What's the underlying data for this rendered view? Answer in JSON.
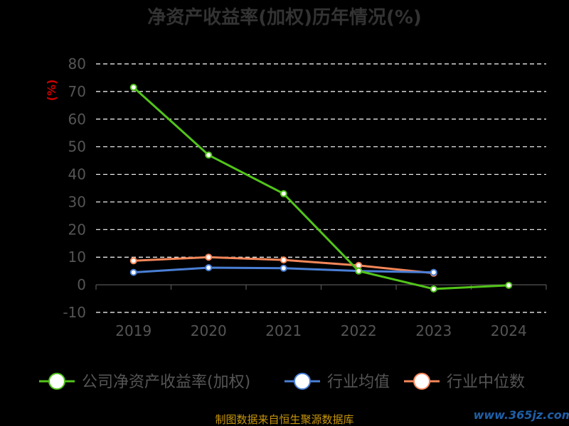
{
  "chart_data": {
    "type": "line",
    "title": "净资产收益率(加权)历年情况(%)",
    "ylabel": "(%)",
    "xlabel": "",
    "categories": [
      "2019",
      "2020",
      "2021",
      "2022",
      "2023",
      "2024"
    ],
    "ylim": [
      -10,
      80
    ],
    "yticks": [
      80,
      70,
      60,
      50,
      40,
      30,
      20,
      10,
      0,
      -10
    ],
    "grid": true,
    "legend_placement": "bottom",
    "series": [
      {
        "name": "公司净资产收益率(加权)",
        "color": "#52c41a",
        "values": [
          71.5,
          47,
          33,
          5,
          -1.5,
          -0.2
        ]
      },
      {
        "name": "行业均值",
        "color": "#4a7fd6",
        "values": [
          4.5,
          6.2,
          6.0,
          5.0,
          4.5,
          null
        ]
      },
      {
        "name": "行业中位数",
        "color": "#f5875a",
        "values": [
          8.7,
          10.0,
          9.0,
          7.0,
          4.2,
          null
        ]
      }
    ]
  },
  "footer": {
    "source": "制图数据来自恒生聚源数据库",
    "watermark": "www.365jz.com"
  }
}
